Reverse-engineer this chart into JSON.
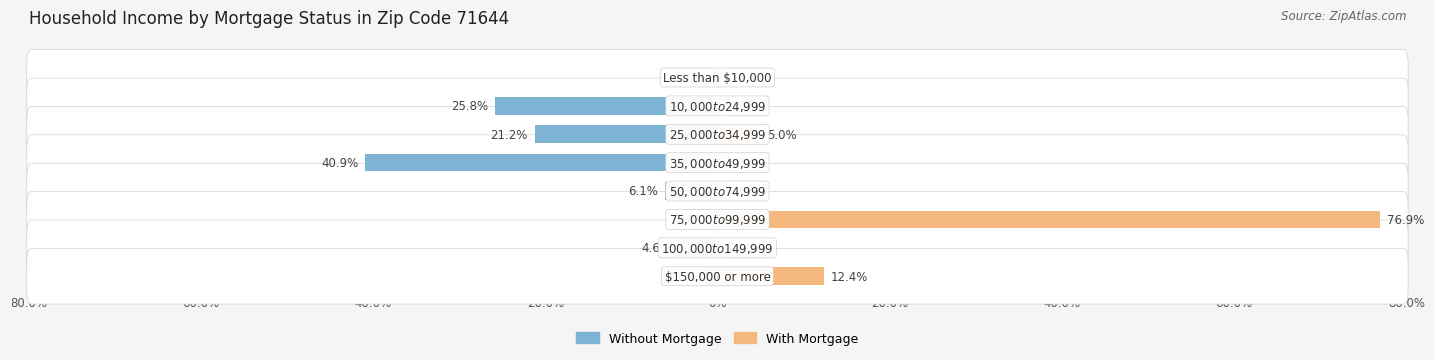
{
  "title": "Household Income by Mortgage Status in Zip Code 71644",
  "source": "Source: ZipAtlas.com",
  "categories": [
    "Less than $10,000",
    "$10,000 to $24,999",
    "$25,000 to $34,999",
    "$35,000 to $49,999",
    "$50,000 to $74,999",
    "$75,000 to $99,999",
    "$100,000 to $149,999",
    "$150,000 or more"
  ],
  "without_mortgage": [
    0.0,
    25.8,
    21.2,
    40.9,
    6.1,
    0.0,
    4.6,
    1.5
  ],
  "with_mortgage": [
    0.0,
    0.0,
    5.0,
    1.7,
    0.0,
    76.9,
    0.0,
    12.4
  ],
  "color_without": "#7fb3d3",
  "color_with": "#f5b97f",
  "xlim": [
    -80,
    80
  ],
  "bar_height": 0.62,
  "title_fontsize": 12,
  "label_fontsize": 8.5,
  "tick_fontsize": 8.5,
  "source_fontsize": 8.5,
  "legend_fontsize": 9,
  "xtick_positions": [
    -80,
    -60,
    -40,
    -20,
    0,
    20,
    40,
    60,
    80
  ],
  "xtick_labels": [
    "80.0%",
    "60.0%",
    "40.0%",
    "20.0%",
    "0%",
    "20.0%",
    "40.0%",
    "60.0%",
    "80.0%"
  ],
  "panel_facecolor": "#ececec",
  "panel_edgecolor": "#cccccc",
  "fig_facecolor": "#f5f5f5",
  "row_light": "#f0f0f0",
  "row_dark": "#e8e8e8"
}
